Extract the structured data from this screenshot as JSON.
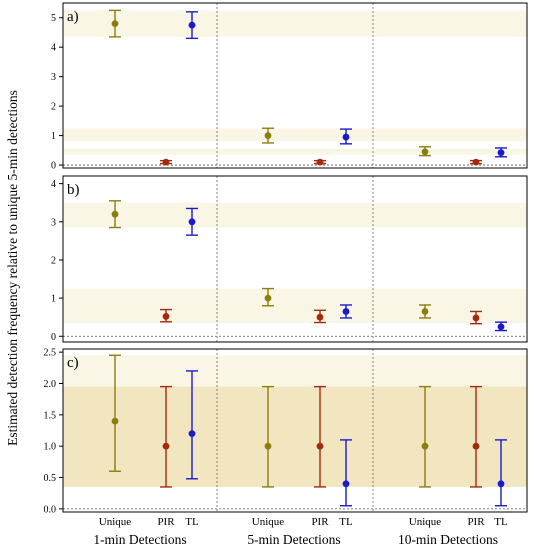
{
  "chart_data": {
    "type": "errorbar",
    "ylabel": "Estimated detection frequency relative to unique 5-min detections",
    "groups": [
      "1-min Detections",
      "5-min Detections",
      "10-min Detections"
    ],
    "categories": [
      "Unique",
      "PIR",
      "TL"
    ],
    "colors": {
      "Unique": "#8B7D0E",
      "PIR": "#A52A0C",
      "TL": "#1A1ACC",
      "band_light": "#FAF6E6",
      "band_dark": "#EFE3B8"
    },
    "panels": [
      {
        "label": "a)",
        "ylim": [
          -0.1,
          5.5
        ],
        "yticks": [
          0,
          1,
          2,
          3,
          4,
          5
        ],
        "bands": [
          [
            4.35,
            5.25
          ],
          [
            0.8,
            1.25
          ],
          [
            0.35,
            0.55
          ]
        ],
        "points": [
          [
            {
              "est": 4.8,
              "lo": 4.35,
              "hi": 5.25
            },
            {
              "est": 0.1,
              "lo": 0.05,
              "hi": 0.15
            },
            {
              "est": 4.75,
              "lo": 4.3,
              "hi": 5.2
            }
          ],
          [
            {
              "est": 1.0,
              "lo": 0.75,
              "hi": 1.25
            },
            {
              "est": 0.1,
              "lo": 0.05,
              "hi": 0.15
            },
            {
              "est": 0.95,
              "lo": 0.72,
              "hi": 1.22
            }
          ],
          [
            {
              "est": 0.45,
              "lo": 0.32,
              "hi": 0.62
            },
            {
              "est": 0.1,
              "lo": 0.05,
              "hi": 0.15
            },
            {
              "est": 0.42,
              "lo": 0.28,
              "hi": 0.58
            }
          ]
        ]
      },
      {
        "label": "b)",
        "ylim": [
          -0.15,
          4.2
        ],
        "yticks": [
          0,
          1,
          2,
          3,
          4
        ],
        "bands": [
          [
            2.85,
            3.5
          ],
          [
            0.7,
            1.25
          ],
          [
            0.35,
            0.7
          ]
        ],
        "points": [
          [
            {
              "est": 3.2,
              "lo": 2.85,
              "hi": 3.55
            },
            {
              "est": 0.52,
              "lo": 0.38,
              "hi": 0.7
            },
            {
              "est": 3.0,
              "lo": 2.65,
              "hi": 3.35
            }
          ],
          [
            {
              "est": 1.0,
              "lo": 0.8,
              "hi": 1.25
            },
            {
              "est": 0.5,
              "lo": 0.36,
              "hi": 0.68
            },
            {
              "est": 0.65,
              "lo": 0.48,
              "hi": 0.82
            }
          ],
          [
            {
              "est": 0.65,
              "lo": 0.48,
              "hi": 0.82
            },
            {
              "est": 0.48,
              "lo": 0.33,
              "hi": 0.65
            },
            {
              "est": 0.25,
              "lo": 0.15,
              "hi": 0.37
            }
          ]
        ]
      },
      {
        "label": "c)",
        "ylim": [
          -0.05,
          2.55
        ],
        "yticks": [
          0.0,
          0.5,
          1.0,
          1.5,
          2.0,
          2.5
        ],
        "bands": [
          [
            0.35,
            2.45
          ],
          [
            0.35,
            1.95
          ]
        ],
        "points": [
          [
            {
              "est": 1.4,
              "lo": 0.6,
              "hi": 2.45
            },
            {
              "est": 1.0,
              "lo": 0.35,
              "hi": 1.95
            },
            {
              "est": 1.2,
              "lo": 0.48,
              "hi": 2.2
            }
          ],
          [
            {
              "est": 1.0,
              "lo": 0.35,
              "hi": 1.95
            },
            {
              "est": 1.0,
              "lo": 0.35,
              "hi": 1.95
            },
            {
              "est": 0.4,
              "lo": 0.05,
              "hi": 1.1
            }
          ],
          [
            {
              "est": 1.0,
              "lo": 0.35,
              "hi": 1.95
            },
            {
              "est": 1.0,
              "lo": 0.35,
              "hi": 1.95
            },
            {
              "est": 0.4,
              "lo": 0.05,
              "hi": 1.1
            }
          ]
        ]
      }
    ]
  }
}
